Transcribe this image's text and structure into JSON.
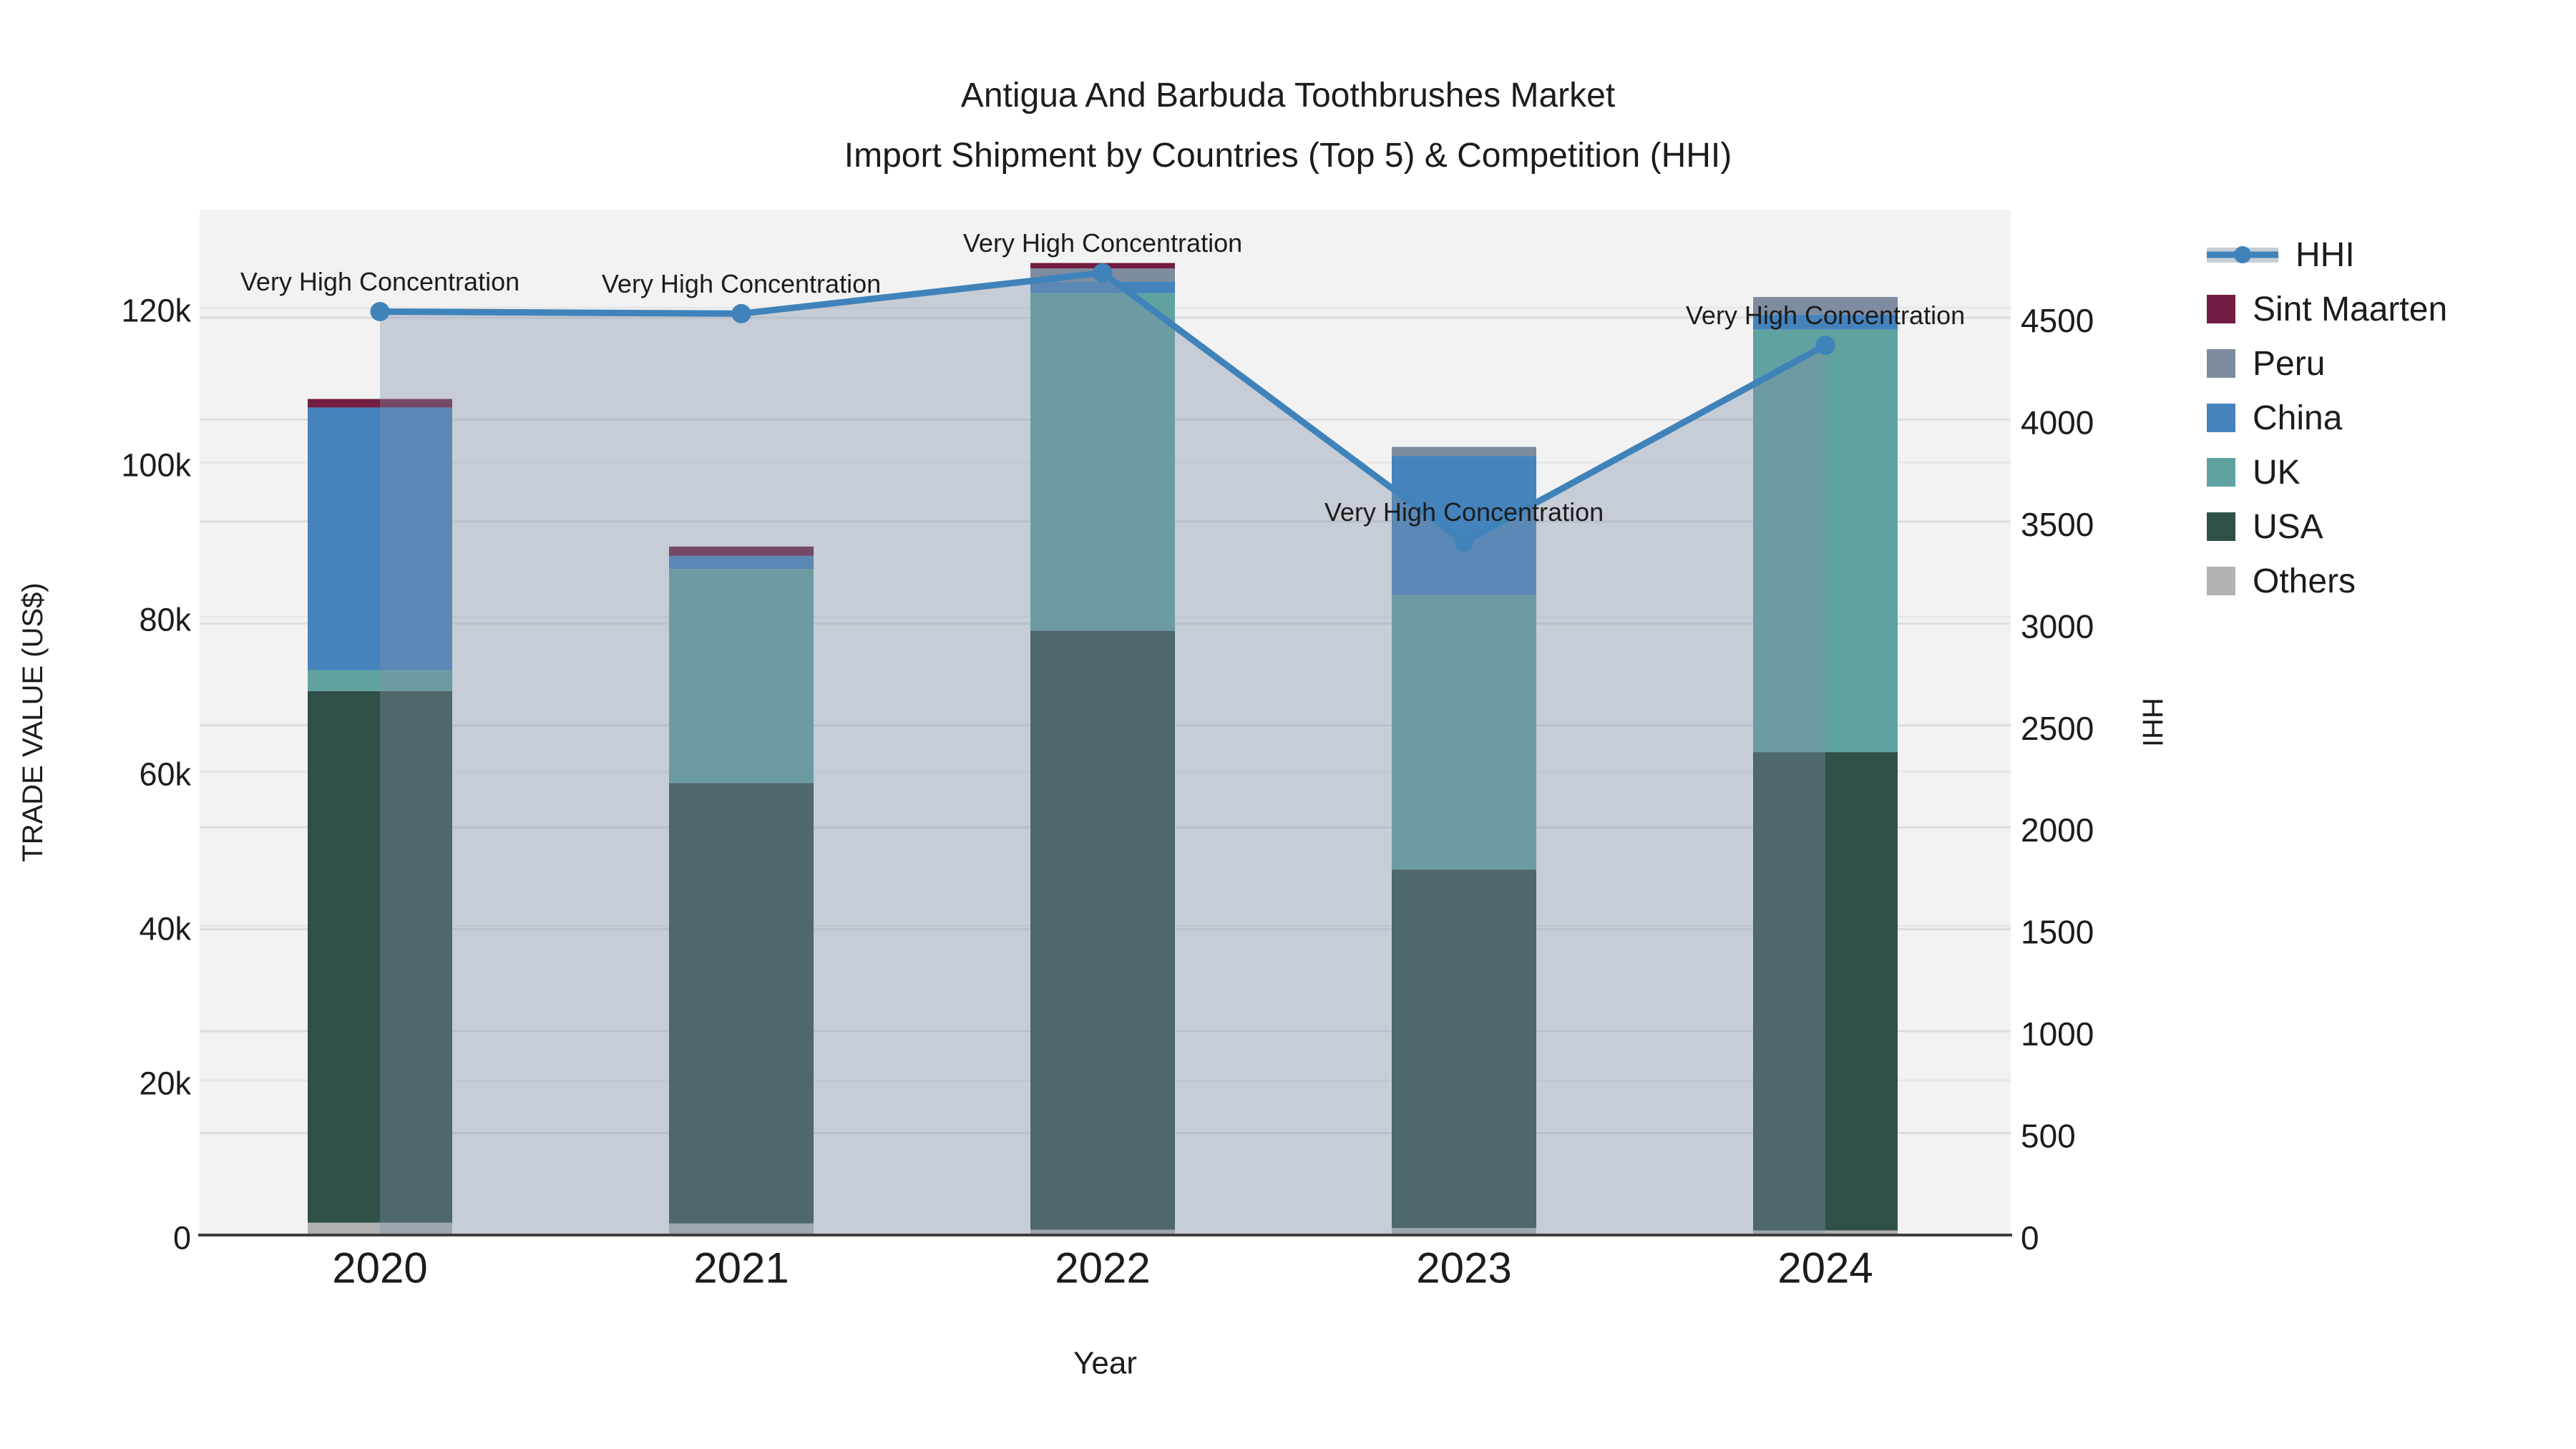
{
  "title": {
    "line1": "Antigua And Barbuda Toothbrushes Market",
    "line2": "Import Shipment by Countries (Top 5) & Competition (HHI)"
  },
  "colors": {
    "plot_bg": "#f2f2f2",
    "grid_left": "#e7e7e7",
    "grid_right": "#dadde1",
    "axis_line": "#3f3f3f",
    "text": "#1c1c1c",
    "hhi_line": "#3f83ba",
    "hhi_area": "rgba(130,145,168,0.38)"
  },
  "legend": {
    "items": [
      {
        "label": "HHI",
        "type": "line",
        "color": "#3f83ba"
      },
      {
        "label": "Sint Maarten",
        "type": "square",
        "color": "#721d41"
      },
      {
        "label": "Peru",
        "type": "square",
        "color": "#7e8ca0"
      },
      {
        "label": "China",
        "type": "square",
        "color": "#4583bd"
      },
      {
        "label": "UK",
        "type": "square",
        "color": "#5fa2a0"
      },
      {
        "label": "USA",
        "type": "square",
        "color": "#2f5048"
      },
      {
        "label": "Others",
        "type": "square",
        "color": "#b0b3b2"
      }
    ]
  },
  "chart_data": {
    "type": "bar",
    "subtype": "stacked-bars-with-line-overlay",
    "categories": [
      "2020",
      "2021",
      "2022",
      "2023",
      "2024"
    ],
    "series": [
      {
        "name": "Others",
        "color": "#b0b3b2",
        "values": [
          1600,
          1500,
          700,
          900,
          600
        ]
      },
      {
        "name": "USA",
        "color": "#2f5048",
        "values": [
          68800,
          57000,
          77500,
          46400,
          61900
        ]
      },
      {
        "name": "UK",
        "color": "#5fa2a0",
        "values": [
          2700,
          27700,
          43700,
          35500,
          54700
        ]
      },
      {
        "name": "China",
        "color": "#4583bd",
        "values": [
          34000,
          1700,
          1500,
          18000,
          1900
        ]
      },
      {
        "name": "Peru",
        "color": "#7e8ca0",
        "values": [
          0,
          0,
          1700,
          1200,
          2300
        ]
      },
      {
        "name": "Sint Maarten",
        "color": "#721d41",
        "values": [
          1100,
          1200,
          700,
          0,
          0
        ]
      }
    ],
    "line_series": {
      "name": "HHI",
      "axis": "right",
      "color": "#3f83ba",
      "area_fill": true,
      "area_color": "rgba(130,145,168,0.38)",
      "values": [
        4530,
        4520,
        4720,
        3400,
        4365
      ]
    },
    "annotations": [
      "Very High Concentration",
      "Very High Concentration",
      "Very High Concentration",
      "Very High Concentration",
      "Very High Concentration"
    ],
    "left_axis": {
      "title": "TRADE VALUE (US$)",
      "range": [
        0,
        132700
      ],
      "tick_values": [
        0,
        20000,
        40000,
        60000,
        80000,
        100000,
        120000
      ],
      "tick_labels": [
        "0",
        "20k",
        "40k",
        "60k",
        "80k",
        "100k",
        "120k"
      ]
    },
    "right_axis": {
      "title": "HHI",
      "range": [
        0,
        5030
      ],
      "tick_values": [
        0,
        500,
        1000,
        1500,
        2000,
        2500,
        3000,
        3500,
        4000,
        4500
      ],
      "tick_labels": [
        "0",
        "500",
        "1000",
        "1500",
        "2000",
        "2500",
        "3000",
        "3500",
        "4000",
        "4500"
      ]
    },
    "x_axis": {
      "title": "Year"
    },
    "layout": {
      "grid": true,
      "legend_position": "right",
      "bars_muted_under_area": true
    }
  }
}
